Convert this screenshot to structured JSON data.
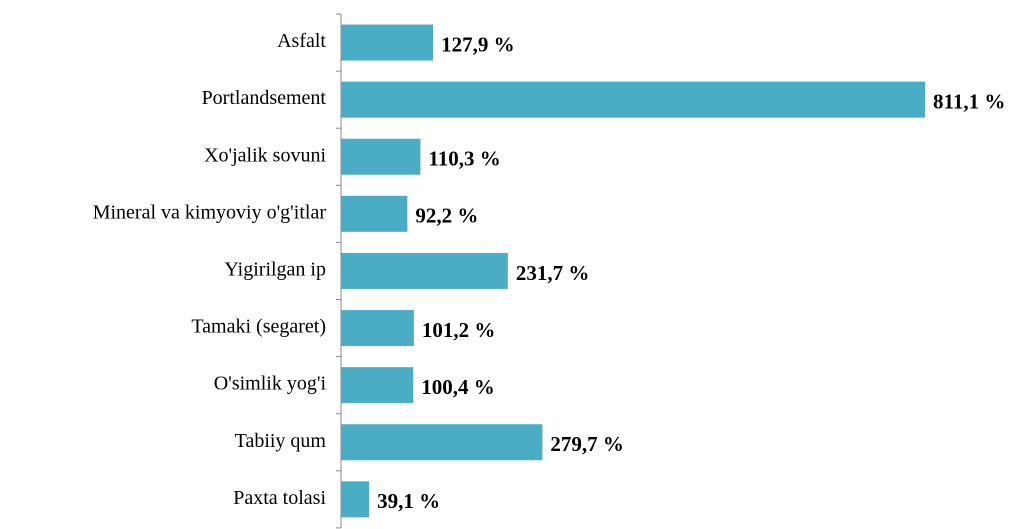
{
  "chart_data": {
    "type": "bar",
    "orientation": "horizontal",
    "categories": [
      "Asfalt",
      "Portlandsement",
      "Xo'jalik sovuni",
      "Mineral va kimyoviy o'g'itlar",
      "Yigirilgan ip",
      "Tamaki (segaret)",
      "O'simlik yog'i",
      "Tabiiy qum",
      "Paxta tolasi"
    ],
    "values": [
      127.9,
      811.1,
      110.3,
      92.2,
      231.7,
      101.2,
      100.4,
      279.7,
      39.1
    ],
    "value_labels": [
      "127,9 %",
      "811,1 %",
      "110,3 %",
      "92,2 %",
      "231,7 %",
      "101,2 %",
      "100,4 %",
      "279,7 %",
      "39,1 %"
    ],
    "color": "#4bacc6"
  }
}
